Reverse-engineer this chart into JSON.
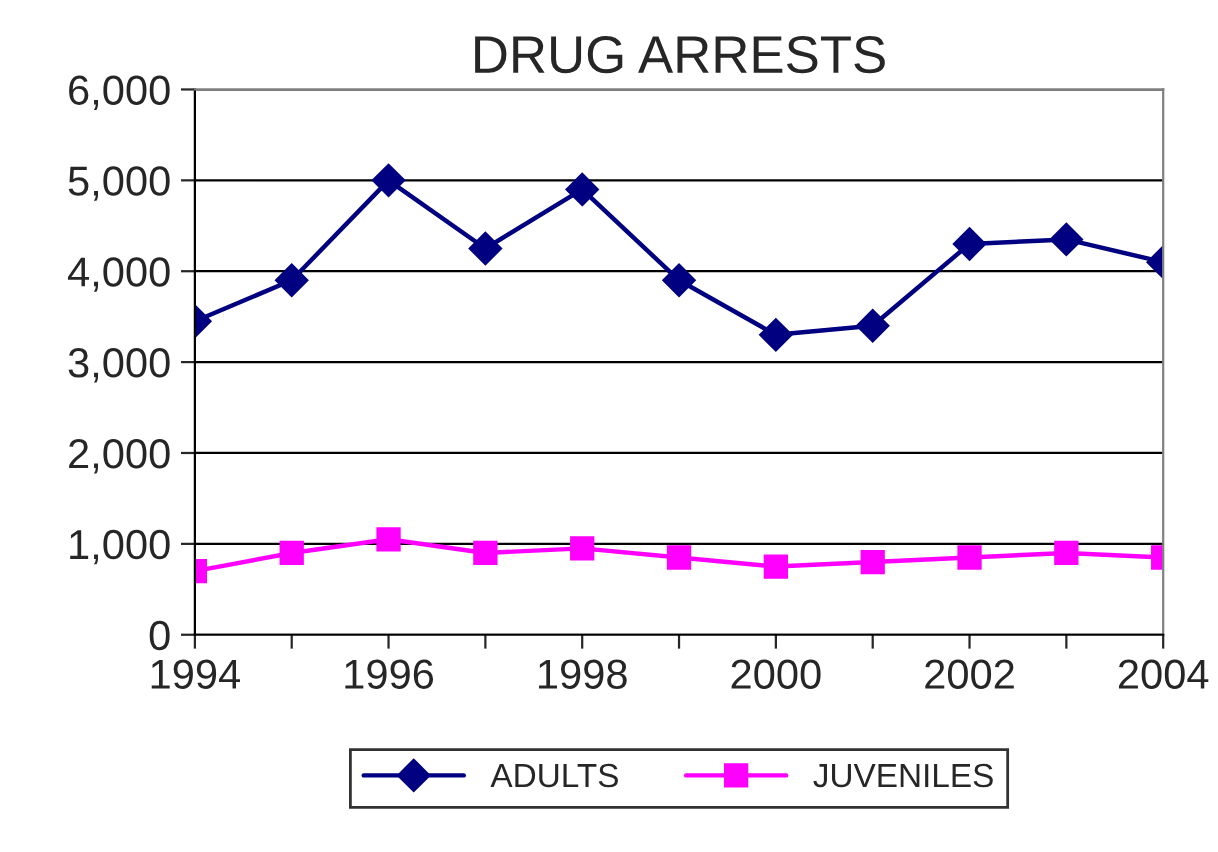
{
  "chart_data": {
    "type": "line",
    "title": "DRUG ARRESTS",
    "x": [
      1994,
      1995,
      1996,
      1997,
      1998,
      1999,
      2000,
      2001,
      2002,
      2003,
      2004
    ],
    "series": [
      {
        "name": "ADULTS",
        "color": "#000080",
        "marker": "diamond",
        "values": [
          3450,
          3900,
          5000,
          4250,
          4900,
          3900,
          3300,
          3400,
          4300,
          4350,
          4100
        ]
      },
      {
        "name": "JUVENILES",
        "color": "#ff00ff",
        "marker": "square",
        "values": [
          700,
          900,
          1050,
          900,
          950,
          850,
          750,
          800,
          850,
          900,
          850
        ]
      }
    ],
    "xlim": [
      1994,
      2004
    ],
    "xticks": [
      1994,
      {
        "value": 1995,
        "label": null
      },
      1996,
      {
        "value": 1997,
        "label": null
      },
      1998,
      {
        "value": 1999,
        "label": null
      },
      2000,
      {
        "value": 2001,
        "label": null
      },
      2002,
      {
        "value": 2003,
        "label": null
      },
      2004
    ],
    "ylim": [
      0,
      6000
    ],
    "yticks": [
      {
        "value": 0,
        "label": "0"
      },
      {
        "value": 1000,
        "label": "1,000"
      },
      {
        "value": 2000,
        "label": "2,000"
      },
      {
        "value": 3000,
        "label": "3,000"
      },
      {
        "value": 4000,
        "label": "4,000"
      },
      {
        "value": 5000,
        "label": "5,000"
      },
      {
        "value": 6000,
        "label": "6,000"
      }
    ],
    "grid": "y",
    "legend": "bottom",
    "line_style": "solid"
  }
}
